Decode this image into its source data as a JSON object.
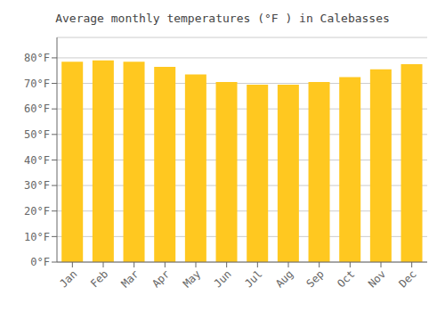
{
  "chart_data": {
    "type": "bar",
    "title": "Average monthly temperatures (°F ) in Calebasses",
    "categories": [
      "Jan",
      "Feb",
      "Mar",
      "Apr",
      "May",
      "Jun",
      "Jul",
      "Aug",
      "Sep",
      "Oct",
      "Nov",
      "Dec"
    ],
    "values": [
      78.5,
      79.0,
      78.5,
      76.5,
      73.5,
      70.5,
      69.5,
      69.5,
      70.5,
      72.5,
      75.5,
      77.5
    ],
    "color": "#FFC820",
    "ylim": [
      0,
      88
    ],
    "yticks": [
      {
        "value": 0,
        "label": "0°F"
      },
      {
        "value": 10,
        "label": "10°F"
      },
      {
        "value": 20,
        "label": "20°F"
      },
      {
        "value": 30,
        "label": "30°F"
      },
      {
        "value": 40,
        "label": "40°F"
      },
      {
        "value": 50,
        "label": "50°F"
      },
      {
        "value": 60,
        "label": "60°F"
      },
      {
        "value": 70,
        "label": "70°F"
      },
      {
        "value": 80,
        "label": "80°F"
      }
    ],
    "grid": true
  }
}
